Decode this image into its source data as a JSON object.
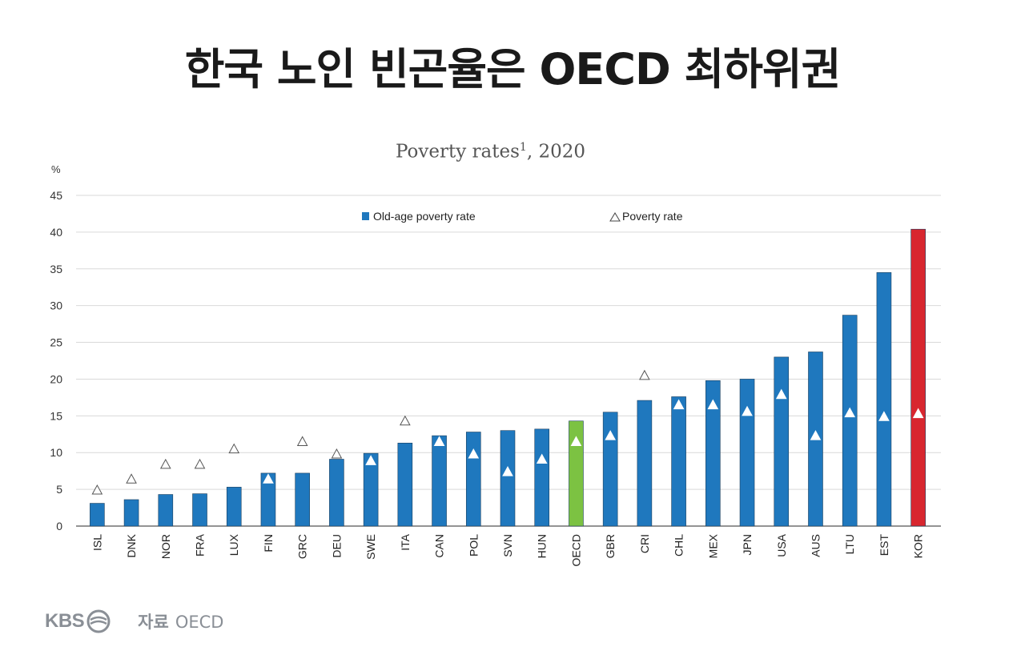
{
  "headline": "한국 노인 빈곤율은 OECD 최하위권",
  "footer": {
    "logo_text": "KBS",
    "source_label": "자료",
    "source_value": "OECD"
  },
  "colors": {
    "default_bar": "#1f78be",
    "oecd_bar": "#7cc242",
    "kor_bar": "#d8262f",
    "grid": "#d9d9d9"
  },
  "chart_data": {
    "type": "bar",
    "title": "Poverty rates",
    "title_superscript": "1",
    "title_suffix": ", 2020",
    "ylabel": "%",
    "ylim": [
      0,
      45
    ],
    "yticks": [
      0,
      5,
      10,
      15,
      20,
      25,
      30,
      35,
      40,
      45
    ],
    "grid": true,
    "legend_placement": "top",
    "categories": [
      "ISL",
      "DNK",
      "NOR",
      "FRA",
      "LUX",
      "FIN",
      "GRC",
      "DEU",
      "SWE",
      "ITA",
      "CAN",
      "POL",
      "SVN",
      "HUN",
      "OECD",
      "GBR",
      "CRI",
      "CHL",
      "MEX",
      "JPN",
      "USA",
      "AUS",
      "LTU",
      "EST",
      "KOR"
    ],
    "series": [
      {
        "name": "Old-age poverty rate",
        "marker": "bar",
        "values": [
          3.1,
          3.6,
          4.3,
          4.4,
          5.3,
          7.2,
          7.2,
          9.1,
          9.9,
          11.3,
          12.3,
          12.8,
          13.0,
          13.2,
          14.3,
          15.5,
          17.1,
          17.6,
          19.8,
          20.0,
          23.0,
          23.7,
          28.7,
          34.5,
          40.4
        ]
      },
      {
        "name": "Poverty rate",
        "marker": "triangle",
        "values": [
          4.9,
          6.4,
          8.4,
          8.4,
          10.5,
          6.4,
          11.5,
          9.8,
          8.9,
          14.3,
          11.5,
          9.8,
          7.4,
          9.1,
          11.5,
          12.3,
          20.5,
          16.5,
          16.5,
          15.6,
          17.9,
          12.3,
          15.4,
          14.9,
          15.3
        ]
      }
    ],
    "highlight": {
      "OECD": "oecd_bar",
      "KOR": "kor_bar"
    }
  }
}
